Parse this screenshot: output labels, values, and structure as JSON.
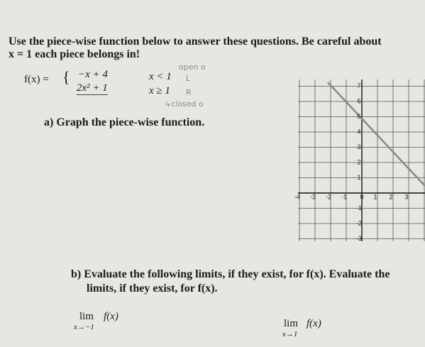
{
  "intro": {
    "line1": "Use the piece-wise function below to answer these questions.  Be careful about",
    "line2": "x = 1 each piece belongs in!"
  },
  "function": {
    "name": "f(x) =",
    "pieces": [
      {
        "expr": "−x + 4",
        "cond": "x < 1"
      },
      {
        "expr": "2x² + 1",
        "cond": "x ≥ 1"
      }
    ]
  },
  "handwriting": {
    "open": "open o",
    "left": "L",
    "right": "R",
    "closed": "↳closed o"
  },
  "part_a": "a)  Graph the piece-wise function.",
  "graph": {
    "x_labels": [
      "-4",
      "-3",
      "-2",
      "-1",
      "0",
      "1",
      "2",
      "3"
    ],
    "y_labels": [
      "7",
      "6",
      "5",
      "4",
      "3",
      "2",
      "1",
      "-1",
      "-2",
      "-3"
    ]
  },
  "part_b": {
    "line1": "b)  Evaluate the following limits, if they exist, for f(x).  Evaluate the",
    "line2": "limits, if they exist, for f(x)."
  },
  "limits": [
    {
      "lim": "lim",
      "sub": "x→−1",
      "func": "f(x)"
    },
    {
      "lim": "lim",
      "sub": "x→1",
      "func": "f(x)"
    }
  ]
}
